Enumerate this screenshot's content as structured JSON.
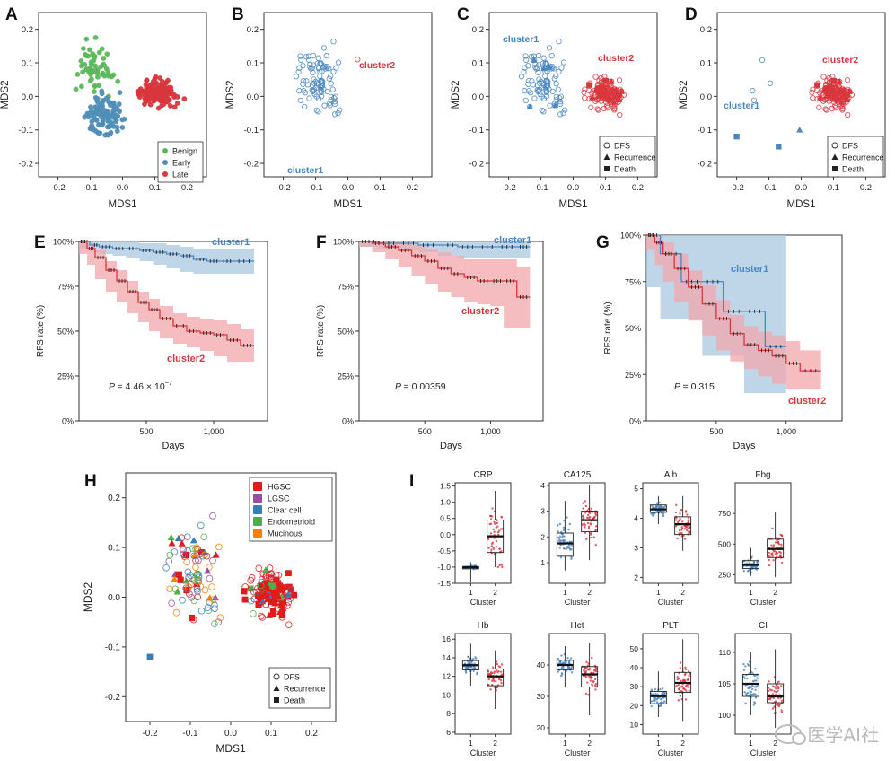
{
  "figure": {
    "watermark": "医学AI社",
    "colors": {
      "benign": "#5cb85c",
      "early": "#4f8fb8",
      "late": "#d9363e",
      "cluster1": "#4a86c0",
      "cluster2": "#d9363e",
      "ci1": "#aac8e2",
      "ci2": "#f1a7ab",
      "hgsc": "#e31a1c",
      "lgsc": "#984ea3",
      "clearcell": "#377eb8",
      "endometrioid": "#4daf4a",
      "mucinous": "#ff7f00"
    }
  },
  "chart_data": [
    {
      "panel": "A",
      "type": "scatter",
      "xlabel": "MDS1",
      "ylabel": "MDS2",
      "xlim": [
        -0.26,
        0.26
      ],
      "ylim": [
        -0.24,
        0.25
      ],
      "xticks": [
        "-0.2",
        "-0.1",
        "0.0",
        "0.1",
        "0.2"
      ],
      "yticks": [
        "-0.2",
        "-0.1",
        "0.0",
        "0.1",
        "0.2"
      ],
      "legend": [
        "Benign",
        "Early",
        "Late"
      ],
      "series": [
        {
          "name": "Benign",
          "values": "approx. 60 points, x -0.18..0.05, y -0.15..0.24"
        },
        {
          "name": "Early",
          "values": "approx. 110 points, x -0.2..0.1, y -0.22..0.08"
        },
        {
          "name": "Late",
          "values": "approx. 150 points, x -0.1..0.22, y -0.12..0.07"
        }
      ]
    },
    {
      "panel": "B",
      "type": "scatter",
      "xlabel": "MDS1",
      "ylabel": "MDS2",
      "xlim": [
        -0.26,
        0.26
      ],
      "ylim": [
        -0.24,
        0.25
      ],
      "xticks": [
        "-0.2",
        "-0.1",
        "0.0",
        "0.1",
        "0.2"
      ],
      "yticks": [
        "-0.2",
        "-0.1",
        "0.0",
        "0.1",
        "0.2"
      ],
      "annotations": [
        "cluster1",
        "cluster2"
      ]
    },
    {
      "panel": "C",
      "type": "scatter",
      "xlabel": "MDS1",
      "ylabel": "MDS2",
      "xlim": [
        -0.26,
        0.26
      ],
      "ylim": [
        -0.24,
        0.25
      ],
      "xticks": [
        "-0.2",
        "-0.1",
        "0.0",
        "0.1",
        "0.2"
      ],
      "yticks": [
        "-0.2",
        "-0.1",
        "0.0",
        "0.1",
        "0.2"
      ],
      "annotations": [
        "cluster1",
        "cluster2"
      ],
      "legend": [
        "DFS",
        "Recurrence",
        "Death"
      ]
    },
    {
      "panel": "D",
      "type": "scatter",
      "xlabel": "MDS1",
      "ylabel": "MDS2",
      "xlim": [
        -0.26,
        0.26
      ],
      "ylim": [
        -0.24,
        0.25
      ],
      "xticks": [
        "-0.2",
        "-0.1",
        "0.0",
        "0.1",
        "0.2"
      ],
      "yticks": [
        "-0.2",
        "-0.1",
        "0.0",
        "0.1",
        "0.2"
      ],
      "annotations": [
        "cluster1",
        "cluster2"
      ],
      "legend": [
        "DFS",
        "Recurrence",
        "Death"
      ]
    },
    {
      "panel": "E",
      "type": "line",
      "xlabel": "Days",
      "ylabel": "RFS rate (%)",
      "xlim": [
        0,
        1400
      ],
      "ylim": [
        0,
        100
      ],
      "xticks": [
        "500",
        "1,000"
      ],
      "yticks": [
        "0%",
        "25%",
        "50%",
        "75%",
        "100%"
      ],
      "pvalue": "4.46 × 10",
      "pvalue_exp": "−7",
      "series": [
        {
          "name": "cluster1",
          "x": [
            0,
            80,
            150,
            250,
            350,
            450,
            550,
            650,
            750,
            850,
            950,
            1050,
            1150,
            1300
          ],
          "y": [
            100,
            98,
            97,
            96,
            96,
            95,
            94,
            93,
            92,
            90,
            89,
            89,
            89,
            89
          ],
          "lo": [
            100,
            96,
            94,
            93,
            92,
            91,
            89,
            87,
            85,
            83,
            82,
            82,
            82,
            82
          ],
          "hi": [
            100,
            100,
            100,
            100,
            100,
            99,
            99,
            98,
            97,
            96,
            96,
            96,
            96,
            96
          ]
        },
        {
          "name": "cluster2",
          "x": [
            0,
            60,
            120,
            200,
            280,
            360,
            440,
            520,
            600,
            700,
            800,
            900,
            1000,
            1100,
            1200,
            1300
          ],
          "y": [
            100,
            96,
            91,
            84,
            78,
            72,
            66,
            62,
            57,
            53,
            50,
            49,
            48,
            45,
            42,
            42
          ],
          "lo": [
            100,
            93,
            87,
            79,
            72,
            66,
            60,
            55,
            50,
            46,
            43,
            41,
            39,
            36,
            33,
            33
          ],
          "hi": [
            100,
            99,
            95,
            89,
            84,
            78,
            72,
            68,
            64,
            60,
            58,
            57,
            56,
            54,
            51,
            51
          ]
        }
      ]
    },
    {
      "panel": "F",
      "type": "line",
      "xlabel": "Days",
      "ylabel": "RFS rate (%)",
      "xlim": [
        0,
        1400
      ],
      "ylim": [
        0,
        100
      ],
      "xticks": [
        "500",
        "1,000"
      ],
      "yticks": [
        "0%",
        "25%",
        "50%",
        "75%",
        "100%"
      ],
      "pvalue": "= 0.00359",
      "series": [
        {
          "name": "cluster1",
          "x": [
            0,
            150,
            300,
            450,
            600,
            750,
            900,
            1050,
            1200,
            1300
          ],
          "y": [
            100,
            99,
            99,
            98,
            98,
            97,
            97,
            97,
            97,
            97
          ],
          "lo": [
            100,
            97,
            96,
            95,
            94,
            92,
            91,
            91,
            91,
            91
          ],
          "hi": [
            100,
            100,
            100,
            100,
            100,
            100,
            100,
            100,
            100,
            100
          ]
        },
        {
          "name": "cluster2",
          "x": [
            0,
            100,
            200,
            300,
            400,
            500,
            600,
            700,
            800,
            900,
            1000,
            1100,
            1200,
            1300
          ],
          "y": [
            100,
            99,
            97,
            95,
            92,
            89,
            85,
            82,
            80,
            78,
            78,
            78,
            69,
            69
          ],
          "lo": [
            100,
            97,
            94,
            90,
            86,
            81,
            76,
            72,
            69,
            66,
            65,
            64,
            52,
            52
          ],
          "hi": [
            100,
            100,
            100,
            100,
            98,
            96,
            94,
            92,
            90,
            90,
            90,
            90,
            86,
            86
          ]
        }
      ]
    },
    {
      "panel": "G",
      "type": "line",
      "xlabel": "Days",
      "ylabel": "RFS rate (%)",
      "xlim": [
        0,
        1400
      ],
      "ylim": [
        0,
        100
      ],
      "xticks": [
        "500",
        "1,000"
      ],
      "yticks": [
        "0%",
        "25%",
        "50%",
        "75%",
        "100%"
      ],
      "pvalue": "= 0.315",
      "series": [
        {
          "name": "cluster1",
          "x": [
            0,
            100,
            250,
            400,
            550,
            700,
            850,
            1000
          ],
          "y": [
            100,
            90,
            75,
            75,
            59,
            59,
            40,
            40
          ],
          "lo": [
            100,
            72,
            55,
            55,
            35,
            35,
            15,
            15
          ],
          "hi": [
            100,
            100,
            100,
            100,
            100,
            100,
            100,
            100
          ]
        },
        {
          "name": "cluster2",
          "x": [
            0,
            60,
            120,
            200,
            300,
            400,
            500,
            600,
            700,
            800,
            900,
            1000,
            1100,
            1250
          ],
          "y": [
            100,
            96,
            90,
            82,
            72,
            63,
            55,
            47,
            41,
            38,
            35,
            31,
            27,
            27
          ],
          "lo": [
            100,
            92,
            84,
            75,
            64,
            54,
            46,
            38,
            32,
            28,
            24,
            20,
            17,
            17
          ],
          "hi": [
            100,
            100,
            96,
            90,
            81,
            73,
            65,
            57,
            51,
            48,
            46,
            43,
            38,
            38
          ]
        }
      ]
    },
    {
      "panel": "H",
      "type": "scatter",
      "xlabel": "MDS1",
      "ylabel": "MDS2",
      "xlim": [
        -0.26,
        0.26
      ],
      "ylim": [
        -0.24,
        0.25
      ],
      "xticks": [
        "-0.2",
        "-0.1",
        "0.0",
        "0.1",
        "0.2"
      ],
      "yticks": [
        "-0.2",
        "-0.1",
        "0.0",
        "0.1",
        "0.2"
      ],
      "legend_histology": [
        "HGSC",
        "LGSC",
        "Clear cell",
        "Endometrioid",
        "Mucinous"
      ],
      "legend_outcome": [
        "DFS",
        "Recurrence",
        "Death"
      ]
    },
    {
      "panel": "I",
      "type": "box",
      "xlabel": "Cluster",
      "categories": [
        "1",
        "2"
      ],
      "plots": [
        {
          "title": "CRP",
          "ylim": [
            -1.5,
            1.6
          ],
          "yticks": [
            "-1.5",
            "-1.0",
            "-0.5",
            "0.0",
            "0.5",
            "1.0",
            "1.5"
          ],
          "c1": {
            "min": -1.45,
            "q1": -1.05,
            "med": -1.0,
            "q3": -1.0,
            "max": -0.85
          },
          "c2": {
            "min": -1.0,
            "q1": -0.55,
            "med": -0.05,
            "q3": 0.45,
            "max": 1.35
          }
        },
        {
          "title": "CA125",
          "ylim": [
            0.2,
            4.1
          ],
          "yticks": [
            "1",
            "2",
            "3",
            "4"
          ],
          "c1": {
            "min": 0.7,
            "q1": 1.25,
            "med": 1.75,
            "q3": 2.15,
            "max": 3.4
          },
          "c2": {
            "min": 1.1,
            "q1": 2.2,
            "med": 2.65,
            "q3": 3.0,
            "max": 4.0
          }
        },
        {
          "title": "Alb",
          "ylim": [
            1.8,
            5.2
          ],
          "yticks": [
            "2",
            "3",
            "4",
            "5"
          ],
          "c1": {
            "min": 3.8,
            "q1": 4.2,
            "med": 4.3,
            "q3": 4.45,
            "max": 4.75
          },
          "c2": {
            "min": 2.9,
            "q1": 3.45,
            "med": 3.8,
            "q3": 4.05,
            "max": 4.75
          }
        },
        {
          "title": "Fbg",
          "ylim": [
            180,
            1000
          ],
          "yticks": [
            "250",
            "500",
            "750"
          ],
          "c1": {
            "min": 240,
            "q1": 300,
            "med": 330,
            "q3": 365,
            "max": 470
          },
          "c2": {
            "min": 230,
            "q1": 390,
            "med": 460,
            "q3": 540,
            "max": 760
          }
        },
        {
          "title": "Hb",
          "ylim": [
            5.8,
            16.6
          ],
          "yticks": [
            "6",
            "8",
            "10",
            "12",
            "14",
            "16"
          ],
          "c1": {
            "min": 11.0,
            "q1": 12.7,
            "med": 13.2,
            "q3": 13.7,
            "max": 15.5
          },
          "c2": {
            "min": 8.5,
            "q1": 11.0,
            "med": 12.0,
            "q3": 12.8,
            "max": 14.8
          }
        },
        {
          "title": "Hct",
          "ylim": [
            18,
            50
          ],
          "yticks": [
            "20",
            "30",
            "40"
          ],
          "c1": {
            "min": 33,
            "q1": 38.5,
            "med": 40,
            "q3": 41.5,
            "max": 46
          },
          "c2": {
            "min": 24,
            "q1": 33,
            "med": 37,
            "q3": 39.5,
            "max": 47
          }
        },
        {
          "title": "PLT",
          "ylim": [
            5,
            58
          ],
          "yticks": [
            "10",
            "20",
            "30",
            "40",
            "50"
          ],
          "c1": {
            "min": 14,
            "q1": 21,
            "med": 25,
            "q3": 27.5,
            "max": 38
          },
          "c2": {
            "min": 12,
            "q1": 27,
            "med": 32,
            "q3": 37.5,
            "max": 55
          }
        },
        {
          "title": "CI",
          "ylim": [
            97,
            113
          ],
          "yticks": [
            "100",
            "105",
            "110"
          ],
          "c1": {
            "min": 100,
            "q1": 103,
            "med": 105,
            "q3": 106.5,
            "max": 110
          },
          "c2": {
            "min": 98,
            "q1": 102,
            "med": 103,
            "q3": 105,
            "max": 110.5
          }
        }
      ]
    }
  ]
}
